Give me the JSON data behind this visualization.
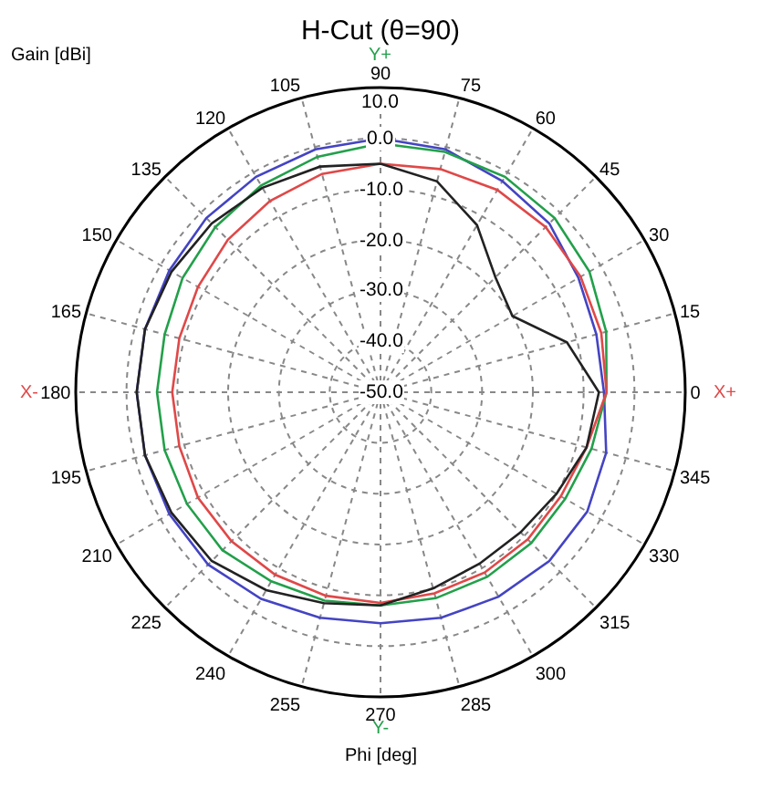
{
  "chart_data": {
    "type": "radar",
    "title": "H-Cut (θ=90)",
    "ylabel": "Gain [dBi]",
    "xlabel": "Phi [deg]",
    "categories": [
      "90",
      "75",
      "60",
      "45",
      "30",
      "15",
      "0",
      "345",
      "330",
      "315",
      "300",
      "285",
      "270",
      "255",
      "240",
      "225",
      "210",
      "195",
      "180",
      "165",
      "150",
      "135",
      "120",
      "105"
    ],
    "ylim": [
      -50,
      10
    ],
    "yticks": [
      {
        "value": -50,
        "label": "-50.0"
      },
      {
        "value": -40,
        "label": "-40.0"
      },
      {
        "value": -30,
        "label": "-30.0"
      },
      {
        "value": -20,
        "label": "-20.0"
      },
      {
        "value": -10,
        "label": "-10.0"
      },
      {
        "value": 0,
        "label": "0.0"
      },
      {
        "value": 10,
        "label": "10.0"
      }
    ],
    "grid": true,
    "marker": "none",
    "line_style": "solid",
    "annotations": [
      "Y+",
      "Y-",
      "X-",
      "X+"
    ],
    "series": [
      {
        "color": "#4444c4",
        "values": [
          0,
          -0.5,
          -2,
          -3,
          -5,
          -6,
          -6,
          -4,
          -3,
          -3,
          -3.5,
          -4,
          -4.5,
          -4,
          -3,
          -2,
          -2,
          -2,
          -2,
          -2,
          -2,
          -1.5,
          -1,
          -0.5
        ]
      },
      {
        "color": "#22a04a",
        "values": [
          -1,
          -1,
          -1,
          -1.5,
          -2.5,
          -4,
          -5.5,
          -7,
          -8,
          -8,
          -8,
          -8,
          -8,
          -7.5,
          -7,
          -6,
          -6,
          -6,
          -6,
          -6,
          -5,
          -4,
          -3,
          -2
        ]
      },
      {
        "color": "#e04848",
        "values": [
          -5,
          -4.5,
          -4,
          -4,
          -4.5,
          -5,
          -5.5,
          -8,
          -9,
          -9,
          -9,
          -9,
          -8.5,
          -8.5,
          -8.5,
          -8.5,
          -8.5,
          -9,
          -9,
          -9,
          -8.5,
          -7.5,
          -6.5,
          -5.5
        ]
      },
      {
        "color": "#222222",
        "values": [
          -5,
          -7,
          -12,
          -18,
          -20,
          -12,
          -7,
          -8,
          -10,
          -11,
          -11,
          -10,
          -8,
          -7,
          -5,
          -3,
          -2.5,
          -2,
          -2,
          -2,
          -2.5,
          -3,
          -3.5,
          -4
        ]
      }
    ]
  }
}
